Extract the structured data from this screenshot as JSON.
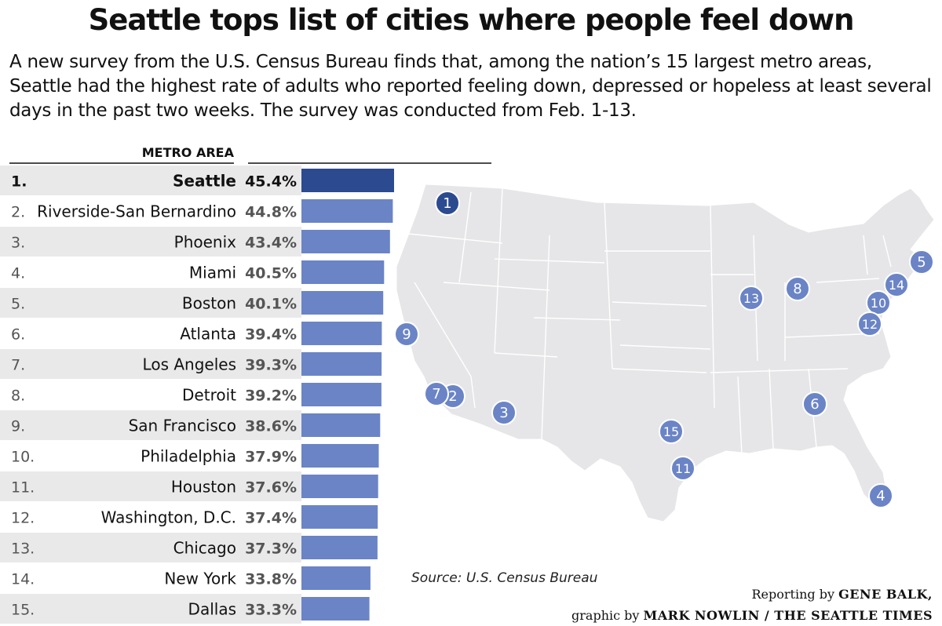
{
  "header": {
    "title": "Seattle tops list of cities where people feel down",
    "subtitle": "A new survey from the U.S. Census Bureau finds that, among the nation’s 15 largest metro areas, Seattle had the highest rate of adults who reported feeling down, depressed or hopeless at least several days in the past two weeks. The survey was conducted from Feb. 1-13."
  },
  "chart_data": {
    "type": "bar",
    "orientation": "horizontal",
    "column_header": "METRO AREA",
    "xlim": [
      0,
      100
    ],
    "value_suffix": "%",
    "categories": [
      "Seattle",
      "Riverside-San Bernardino",
      "Phoenix",
      "Miami",
      "Boston",
      "Atlanta",
      "Los Angeles",
      "Detroit",
      "San Francisco",
      "Philadelphia",
      "Houston",
      "Washington, D.C.",
      "Chicago",
      "New York",
      "Dallas"
    ],
    "ranks": [
      "1.",
      "2.",
      "3.",
      "4.",
      "5.",
      "6.",
      "7.",
      "8.",
      "9.",
      "10.",
      "11.",
      "12.",
      "13.",
      "14.",
      "15."
    ],
    "values": [
      45.4,
      44.8,
      43.4,
      40.5,
      40.1,
      39.4,
      39.3,
      39.2,
      38.6,
      37.9,
      37.6,
      37.4,
      37.3,
      33.8,
      33.3
    ],
    "value_labels": [
      "45.4%",
      "44.8%",
      "43.4%",
      "40.5%",
      "40.1%",
      "39.4%",
      "39.3%",
      "39.2%",
      "38.6%",
      "37.9%",
      "37.6%",
      "37.4%",
      "37.3%",
      "33.8%",
      "33.3%"
    ],
    "highlight_index": 0
  },
  "map": {
    "markers": [
      "1",
      "2",
      "3",
      "4",
      "5",
      "6",
      "7",
      "8",
      "9",
      "10",
      "11",
      "12",
      "13",
      "14",
      "15"
    ]
  },
  "colors": {
    "highlight": "#2c4a8f",
    "bar": "#6a84c6",
    "marker": "#6a84c6",
    "marker_highlight": "#2c4a8f",
    "land": "#e6e6e8",
    "stripe": "#e9e9e9"
  },
  "footer": {
    "source": "Source: U.S. Census Bureau",
    "credit_prefix_1": "Reporting by ",
    "credit_name_1": "GENE BALK,",
    "credit_prefix_2": "graphic by ",
    "credit_name_2": "MARK NOWLIN / THE SEATTLE TIMES"
  }
}
